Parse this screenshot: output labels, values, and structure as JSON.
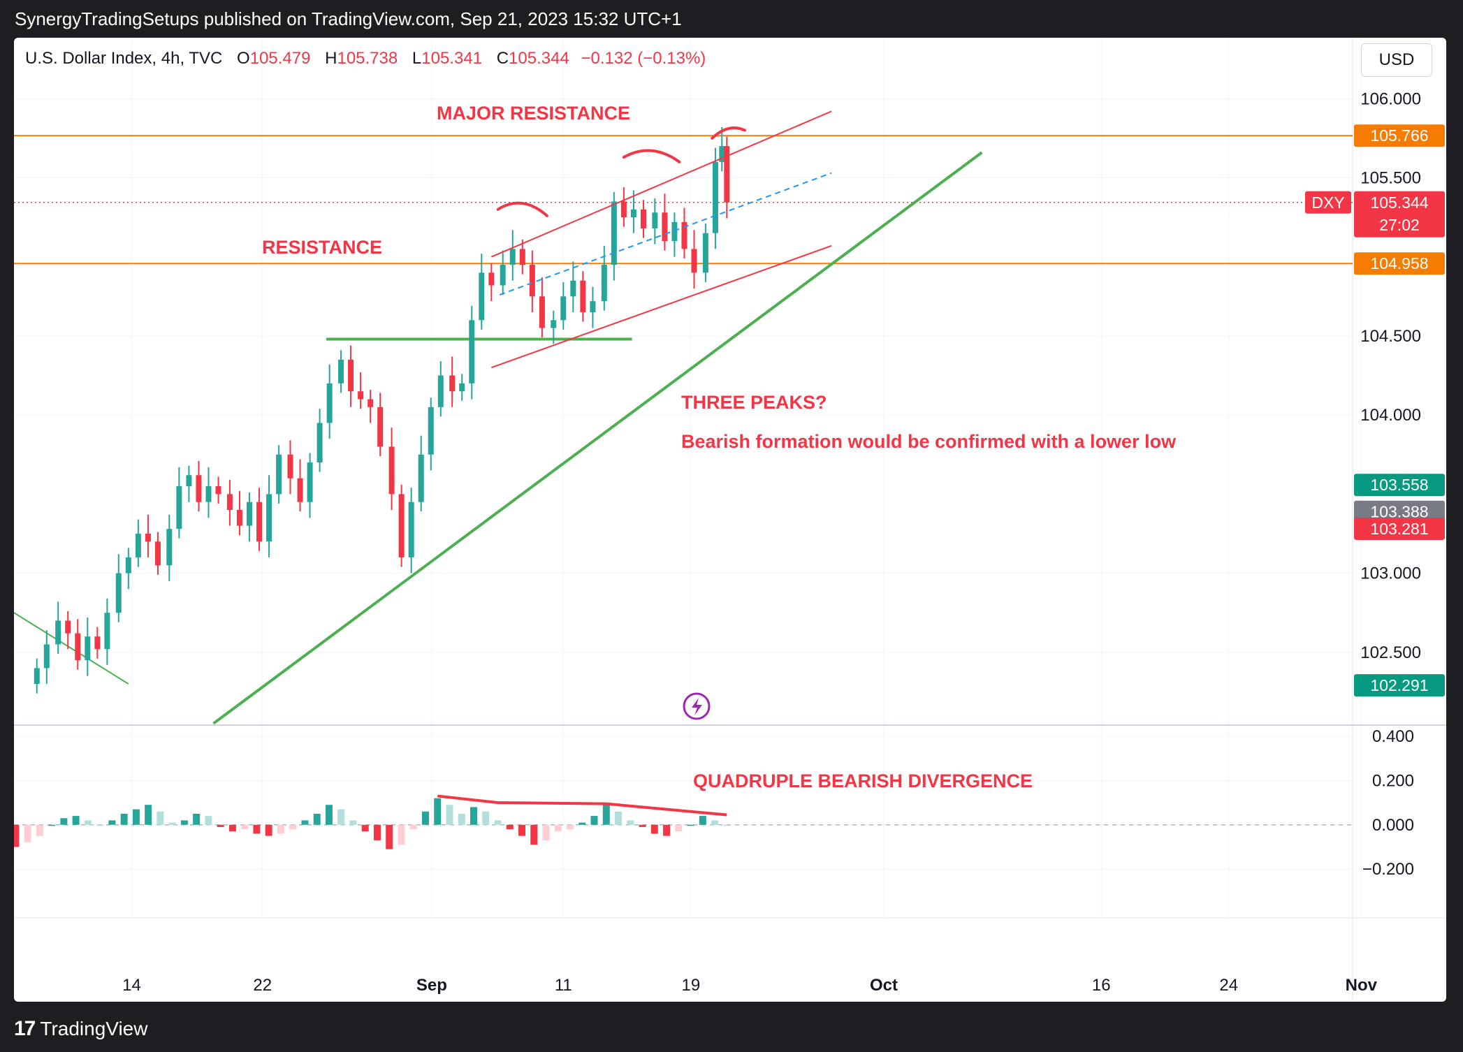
{
  "header": {
    "published": "SynergyTradingSetups published on TradingView.com, Sep 21, 2023 15:32 UTC+1"
  },
  "legend": {
    "symbol": "U.S. Dollar Index, 4h, TVC",
    "o_label": "O",
    "o_value": "105.479",
    "h_label": "H",
    "h_value": "105.738",
    "l_label": "L",
    "l_value": "105.341",
    "c_label": "C",
    "c_value": "105.344",
    "change": "−0.132 (−0.13%)"
  },
  "currency_button": "USD",
  "annotations": {
    "major_resistance": "MAJOR RESISTANCE",
    "resistance": "RESISTANCE",
    "three_peaks": "THREE PEAKS?",
    "bearish_note": "Bearish formation would be confirmed with a lower low",
    "divergence": "QUADRUPLE BEARISH DIVERGENCE"
  },
  "footer": {
    "logo": "17",
    "brand": "TradingView"
  },
  "colors": {
    "up": "#26a69a",
    "down": "#f23645",
    "orange": "#f57c00",
    "green": "#4caf50",
    "blue": "#2196f3"
  },
  "chart_data": {
    "type": "candlestick",
    "symbol": "DXY",
    "interval": "4h",
    "ylim": [
      102.2,
      106.35
    ],
    "y_ticks": [
      "106.000",
      "105.500",
      "104.500",
      "104.000",
      "103.000",
      "102.500"
    ],
    "x_ticks": [
      {
        "label": "14",
        "day": 14
      },
      {
        "label": "22",
        "day": 22
      },
      {
        "label": "Sep",
        "day": 32.35
      },
      {
        "label": "11",
        "day": 40.4
      },
      {
        "label": "19",
        "day": 48.2
      },
      {
        "label": "Oct",
        "day": 60
      },
      {
        "label": "16",
        "day": 73.3
      },
      {
        "label": "24",
        "day": 81.1
      },
      {
        "label": "Nov",
        "day": 89.2
      }
    ],
    "x_range": [
      6.8,
      94.4
    ],
    "price_badges": [
      {
        "symbol": "",
        "value": "105.766",
        "color": "#f57c00",
        "price": 105.766
      },
      {
        "symbol": "DXY",
        "value": "105.344",
        "sub": "27:02",
        "color": "#f23645",
        "price": 105.344
      },
      {
        "symbol": "",
        "value": "104.958",
        "color": "#f57c00",
        "price": 104.958
      },
      {
        "symbol": "",
        "value": "103.558",
        "color": "#089981",
        "price": 103.558
      },
      {
        "symbol": "",
        "value": "103.388",
        "color": "#787b86",
        "price": 103.388
      },
      {
        "symbol": "",
        "value": "103.281",
        "color": "#f23645",
        "price": 103.281
      },
      {
        "symbol": "",
        "value": "102.291",
        "color": "#089981",
        "price": 102.291
      }
    ],
    "hlines": [
      105.766,
      104.958
    ],
    "last_price": 105.344,
    "candles": [
      [
        8.2,
        102.3,
        102.4
      ],
      [
        8.8,
        102.4,
        102.55
      ],
      [
        9.5,
        102.55,
        102.7
      ],
      [
        10.1,
        102.7,
        102.62
      ],
      [
        10.7,
        102.62,
        102.45
      ],
      [
        11.3,
        102.45,
        102.6
      ],
      [
        11.9,
        102.6,
        102.52
      ],
      [
        12.5,
        102.52,
        102.75
      ],
      [
        13.2,
        102.75,
        103.0
      ],
      [
        13.8,
        103.0,
        103.1
      ],
      [
        14.4,
        103.1,
        103.25
      ],
      [
        15.0,
        103.25,
        103.2
      ],
      [
        15.6,
        103.2,
        103.05
      ],
      [
        16.3,
        103.05,
        103.28
      ],
      [
        16.9,
        103.28,
        103.55
      ],
      [
        17.5,
        103.55,
        103.62
      ],
      [
        18.1,
        103.62,
        103.45
      ],
      [
        18.7,
        103.45,
        103.55
      ],
      [
        19.3,
        103.55,
        103.5
      ],
      [
        20.0,
        103.5,
        103.4
      ],
      [
        20.6,
        103.4,
        103.3
      ],
      [
        21.2,
        103.3,
        103.45
      ],
      [
        21.8,
        103.45,
        103.2
      ],
      [
        22.4,
        103.2,
        103.5
      ],
      [
        23.0,
        103.5,
        103.75
      ],
      [
        23.7,
        103.75,
        103.6
      ],
      [
        24.3,
        103.6,
        103.45
      ],
      [
        24.9,
        103.45,
        103.7
      ],
      [
        25.5,
        103.7,
        103.95
      ],
      [
        26.1,
        103.95,
        104.2
      ],
      [
        26.8,
        104.2,
        104.35
      ],
      [
        27.4,
        104.35,
        104.15
      ],
      [
        28.0,
        104.15,
        104.1
      ],
      [
        28.6,
        104.1,
        104.05
      ],
      [
        29.2,
        104.05,
        103.8
      ],
      [
        29.9,
        103.8,
        103.5
      ],
      [
        30.5,
        103.5,
        103.1
      ],
      [
        31.1,
        103.1,
        103.45
      ],
      [
        31.7,
        103.45,
        103.75
      ],
      [
        32.3,
        103.75,
        104.05
      ],
      [
        32.9,
        104.05,
        104.25
      ],
      [
        33.6,
        104.25,
        104.15
      ],
      [
        34.2,
        104.15,
        104.2
      ],
      [
        34.8,
        104.2,
        104.6
      ],
      [
        35.4,
        104.6,
        104.9
      ],
      [
        36.0,
        104.9,
        104.82
      ],
      [
        36.7,
        104.82,
        104.95
      ],
      [
        37.3,
        104.95,
        105.05
      ],
      [
        37.9,
        105.05,
        104.95
      ],
      [
        38.5,
        104.95,
        104.75
      ],
      [
        39.1,
        104.75,
        104.55
      ],
      [
        39.8,
        104.55,
        104.6
      ],
      [
        40.4,
        104.6,
        104.75
      ],
      [
        41.0,
        104.75,
        104.85
      ],
      [
        41.6,
        104.85,
        104.65
      ],
      [
        42.2,
        104.65,
        104.72
      ],
      [
        42.9,
        104.72,
        104.95
      ],
      [
        43.5,
        104.95,
        105.35
      ],
      [
        44.1,
        105.35,
        105.25
      ],
      [
        44.7,
        105.25,
        105.3
      ],
      [
        45.3,
        105.3,
        105.18
      ],
      [
        46.0,
        105.18,
        105.28
      ],
      [
        46.6,
        105.28,
        105.1
      ],
      [
        47.2,
        105.1,
        105.22
      ],
      [
        47.8,
        105.22,
        105.05
      ],
      [
        48.4,
        105.05,
        104.9
      ],
      [
        49.1,
        104.9,
        105.15
      ],
      [
        49.7,
        105.15,
        105.6
      ],
      [
        50.1,
        105.6,
        105.7
      ],
      [
        50.4,
        105.7,
        105.344
      ]
    ],
    "indicator": {
      "type": "histogram",
      "ylim": [
        -0.42,
        0.45
      ],
      "y_ticks": [
        "0.400",
        "0.200",
        "0.000",
        "−0.200"
      ],
      "values": [
        -0.1,
        -0.08,
        -0.05,
        0.0,
        0.03,
        0.04,
        0.02,
        0.0,
        0.02,
        0.05,
        0.07,
        0.09,
        0.06,
        0.01,
        0.02,
        0.05,
        0.04,
        -0.01,
        -0.03,
        -0.02,
        -0.04,
        -0.05,
        -0.04,
        -0.02,
        0.02,
        0.05,
        0.09,
        0.07,
        0.02,
        -0.03,
        -0.07,
        -0.11,
        -0.09,
        -0.02,
        0.06,
        0.12,
        0.09,
        0.05,
        0.08,
        0.06,
        0.02,
        -0.02,
        -0.05,
        -0.09,
        -0.07,
        -0.03,
        -0.02,
        0.01,
        0.04,
        0.09,
        0.06,
        0.02,
        -0.01,
        -0.04,
        -0.05,
        -0.03,
        0.0,
        0.04,
        0.02,
        0.0
      ]
    }
  }
}
